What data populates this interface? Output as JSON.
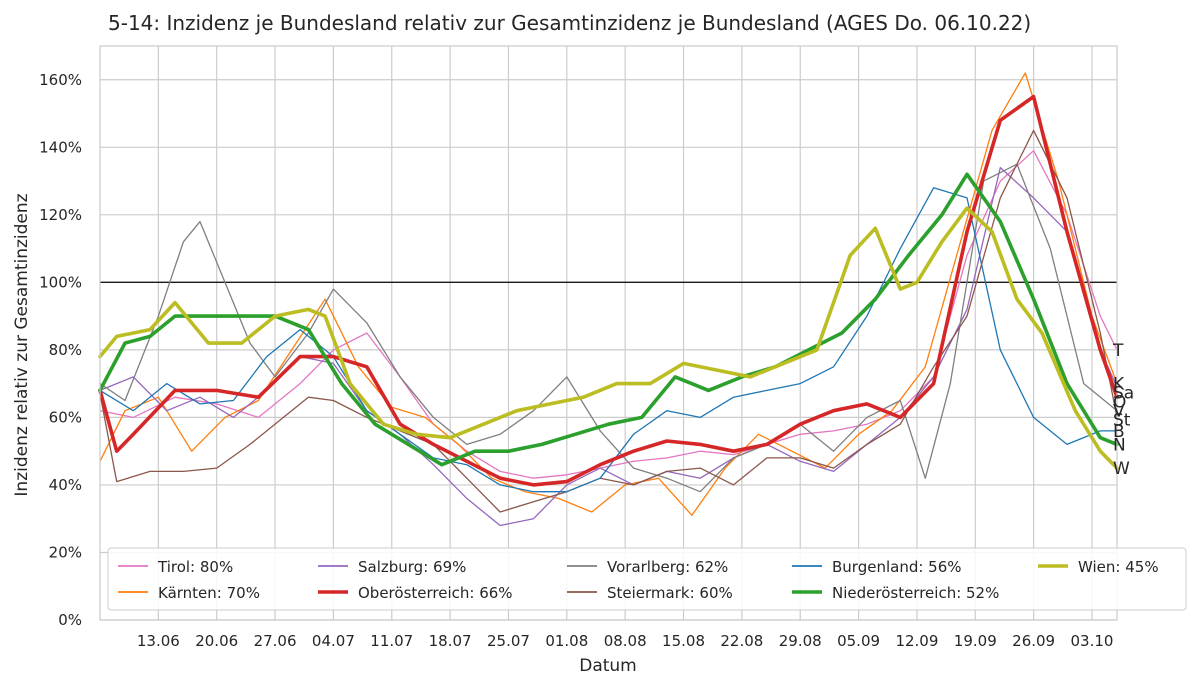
{
  "chart_data": {
    "type": "line",
    "title": "5-14: Inzidenz je Bundesland relativ zur Gesamtinzidenz je Bundesland (AGES Do. 06.10.22)",
    "xlabel": "Datum",
    "ylabel": "Inzidenz relativ zur Gesamtinzidenz",
    "y_unit": "%",
    "ylim": [
      0,
      170
    ],
    "yticks": [
      0,
      20,
      40,
      60,
      80,
      100,
      120,
      140,
      160
    ],
    "ytick_labels": [
      "0%",
      "20%",
      "40%",
      "60%",
      "80%",
      "100%",
      "120%",
      "140%",
      "160%"
    ],
    "x_range": [
      "2022-06-06",
      "2022-10-06"
    ],
    "xticks": [
      "2022-06-13",
      "2022-06-20",
      "2022-06-27",
      "2022-07-04",
      "2022-07-11",
      "2022-07-18",
      "2022-07-25",
      "2022-08-01",
      "2022-08-08",
      "2022-08-15",
      "2022-08-22",
      "2022-08-29",
      "2022-09-05",
      "2022-09-12",
      "2022-09-19",
      "2022-09-26",
      "2022-10-03"
    ],
    "xtick_labels": [
      "13.06",
      "20.06",
      "27.06",
      "04.07",
      "11.07",
      "18.07",
      "25.07",
      "01.08",
      "08.08",
      "15.08",
      "22.08",
      "29.08",
      "05.09",
      "12.09",
      "19.09",
      "26.09",
      "03.10"
    ],
    "reference_line": 100,
    "grid": true,
    "legend_position": "bottom",
    "series": [
      {
        "name": "Tirol",
        "legend": "Tirol: 80%",
        "end_label": "T",
        "color": "#e377c2",
        "bold": false,
        "x": [
          "2022-06-06",
          "2022-06-10",
          "2022-06-15",
          "2022-06-20",
          "2022-06-25",
          "2022-06-30",
          "2022-07-04",
          "2022-07-08",
          "2022-07-12",
          "2022-07-16",
          "2022-07-20",
          "2022-07-24",
          "2022-07-28",
          "2022-08-01",
          "2022-08-05",
          "2022-08-09",
          "2022-08-13",
          "2022-08-17",
          "2022-08-21",
          "2022-08-25",
          "2022-08-29",
          "2022-09-02",
          "2022-09-06",
          "2022-09-10",
          "2022-09-14",
          "2022-09-18",
          "2022-09-22",
          "2022-09-26",
          "2022-09-30",
          "2022-10-04",
          "2022-10-06"
        ],
        "y": [
          62,
          60,
          66,
          64,
          60,
          70,
          80,
          85,
          72,
          58,
          50,
          44,
          42,
          43,
          45,
          47,
          48,
          50,
          49,
          52,
          55,
          56,
          58,
          62,
          72,
          108,
          130,
          139,
          120,
          90,
          80
        ]
      },
      {
        "name": "Kärnten",
        "legend": "Kärnten: 70%",
        "end_label": "K",
        "color": "#ff7f0e",
        "bold": false,
        "x": [
          "2022-06-06",
          "2022-06-09",
          "2022-06-13",
          "2022-06-17",
          "2022-06-21",
          "2022-06-25",
          "2022-06-29",
          "2022-07-03",
          "2022-07-07",
          "2022-07-11",
          "2022-07-15",
          "2022-07-19",
          "2022-07-23",
          "2022-07-27",
          "2022-07-31",
          "2022-08-04",
          "2022-08-08",
          "2022-08-12",
          "2022-08-16",
          "2022-08-20",
          "2022-08-24",
          "2022-08-28",
          "2022-09-01",
          "2022-09-05",
          "2022-09-09",
          "2022-09-13",
          "2022-09-17",
          "2022-09-21",
          "2022-09-25",
          "2022-09-29",
          "2022-10-03",
          "2022-10-06"
        ],
        "y": [
          47,
          62,
          66,
          50,
          60,
          65,
          80,
          95,
          75,
          63,
          60,
          52,
          42,
          38,
          36,
          32,
          40,
          42,
          31,
          45,
          55,
          50,
          45,
          55,
          62,
          75,
          110,
          145,
          162,
          130,
          90,
          70
        ]
      },
      {
        "name": "Salzburg",
        "legend": "Salzburg: 69%",
        "end_label": "Sa",
        "color": "#9467bd",
        "bold": false,
        "x": [
          "2022-06-06",
          "2022-06-10",
          "2022-06-14",
          "2022-06-18",
          "2022-06-22",
          "2022-06-26",
          "2022-06-30",
          "2022-07-04",
          "2022-07-08",
          "2022-07-12",
          "2022-07-16",
          "2022-07-20",
          "2022-07-24",
          "2022-07-28",
          "2022-08-01",
          "2022-08-05",
          "2022-08-09",
          "2022-08-13",
          "2022-08-17",
          "2022-08-21",
          "2022-08-25",
          "2022-08-29",
          "2022-09-02",
          "2022-09-06",
          "2022-09-10",
          "2022-09-14",
          "2022-09-18",
          "2022-09-22",
          "2022-09-26",
          "2022-09-30",
          "2022-10-04",
          "2022-10-06"
        ],
        "y": [
          68,
          72,
          62,
          66,
          60,
          68,
          78,
          76,
          62,
          55,
          46,
          36,
          28,
          30,
          40,
          45,
          40,
          44,
          42,
          48,
          52,
          47,
          44,
          52,
          60,
          72,
          92,
          134,
          125,
          115,
          80,
          69
        ]
      },
      {
        "name": "Oberösterreich",
        "legend": "Oberösterreich: 66%",
        "end_label": "O",
        "color": "#d62728",
        "bold": true,
        "x": [
          "2022-06-06",
          "2022-06-08",
          "2022-06-10",
          "2022-06-15",
          "2022-06-20",
          "2022-06-25",
          "2022-06-30",
          "2022-07-04",
          "2022-07-08",
          "2022-07-12",
          "2022-07-16",
          "2022-07-20",
          "2022-07-24",
          "2022-07-28",
          "2022-08-01",
          "2022-08-05",
          "2022-08-09",
          "2022-08-13",
          "2022-08-17",
          "2022-08-21",
          "2022-08-25",
          "2022-08-29",
          "2022-09-02",
          "2022-09-06",
          "2022-09-10",
          "2022-09-14",
          "2022-09-18",
          "2022-09-22",
          "2022-09-26",
          "2022-09-30",
          "2022-10-04",
          "2022-10-06"
        ],
        "y": [
          68,
          50,
          55,
          68,
          68,
          66,
          78,
          78,
          75,
          58,
          52,
          47,
          42,
          40,
          41,
          46,
          50,
          53,
          52,
          50,
          52,
          58,
          62,
          64,
          60,
          70,
          115,
          148,
          155,
          115,
          80,
          66
        ]
      },
      {
        "name": "Vorarlberg",
        "legend": "Vorarlberg: 62%",
        "end_label": "V",
        "color": "#7f7f7f",
        "bold": false,
        "x": [
          "2022-06-06",
          "2022-06-09",
          "2022-06-13",
          "2022-06-16",
          "2022-06-18",
          "2022-06-21",
          "2022-06-24",
          "2022-06-27",
          "2022-07-01",
          "2022-07-04",
          "2022-07-08",
          "2022-07-12",
          "2022-07-16",
          "2022-07-20",
          "2022-07-24",
          "2022-07-28",
          "2022-08-01",
          "2022-08-05",
          "2022-08-09",
          "2022-08-13",
          "2022-08-17",
          "2022-08-21",
          "2022-08-25",
          "2022-08-29",
          "2022-09-02",
          "2022-09-06",
          "2022-09-10",
          "2022-09-13",
          "2022-09-16",
          "2022-09-20",
          "2022-09-24",
          "2022-09-28",
          "2022-10-02",
          "2022-10-06"
        ],
        "y": [
          70,
          65,
          90,
          112,
          118,
          100,
          82,
          72,
          85,
          98,
          88,
          72,
          60,
          52,
          55,
          62,
          72,
          56,
          45,
          42,
          38,
          48,
          52,
          58,
          50,
          60,
          65,
          42,
          70,
          130,
          135,
          110,
          70,
          62
        ]
      },
      {
        "name": "Steiermark",
        "legend": "Steiermark: 60%",
        "end_label": "St",
        "color": "#8c564b",
        "bold": false,
        "x": [
          "2022-06-06",
          "2022-06-08",
          "2022-06-12",
          "2022-06-16",
          "2022-06-20",
          "2022-06-24",
          "2022-06-28",
          "2022-07-01",
          "2022-07-04",
          "2022-07-08",
          "2022-07-12",
          "2022-07-16",
          "2022-07-20",
          "2022-07-24",
          "2022-07-28",
          "2022-08-01",
          "2022-08-05",
          "2022-08-09",
          "2022-08-13",
          "2022-08-17",
          "2022-08-21",
          "2022-08-25",
          "2022-08-29",
          "2022-09-02",
          "2022-09-06",
          "2022-09-10",
          "2022-09-14",
          "2022-09-18",
          "2022-09-22",
          "2022-09-26",
          "2022-09-30",
          "2022-10-04",
          "2022-10-06"
        ],
        "y": [
          67,
          41,
          44,
          44,
          45,
          52,
          60,
          66,
          65,
          60,
          56,
          52,
          42,
          32,
          35,
          38,
          42,
          40,
          44,
          45,
          40,
          48,
          48,
          45,
          52,
          58,
          75,
          90,
          125,
          145,
          125,
          85,
          60
        ]
      },
      {
        "name": "Burgenland",
        "legend": "Burgenland: 56%",
        "end_label": "B",
        "color": "#1f77b4",
        "bold": false,
        "x": [
          "2022-06-06",
          "2022-06-10",
          "2022-06-14",
          "2022-06-18",
          "2022-06-22",
          "2022-06-26",
          "2022-06-30",
          "2022-07-04",
          "2022-07-08",
          "2022-07-12",
          "2022-07-16",
          "2022-07-20",
          "2022-07-24",
          "2022-07-28",
          "2022-08-01",
          "2022-08-05",
          "2022-08-09",
          "2022-08-13",
          "2022-08-17",
          "2022-08-21",
          "2022-08-25",
          "2022-08-29",
          "2022-09-02",
          "2022-09-06",
          "2022-09-10",
          "2022-09-14",
          "2022-09-18",
          "2022-09-22",
          "2022-09-26",
          "2022-09-30",
          "2022-10-04",
          "2022-10-06"
        ],
        "y": [
          68,
          62,
          70,
          64,
          65,
          78,
          86,
          78,
          62,
          55,
          48,
          46,
          40,
          38,
          38,
          42,
          55,
          62,
          60,
          66,
          68,
          70,
          75,
          90,
          110,
          128,
          125,
          80,
          60,
          52,
          56,
          56
        ]
      },
      {
        "name": "Niederösterreich",
        "legend": "Niederösterreich: 52%",
        "end_label": "N",
        "color": "#2ca02c",
        "bold": true,
        "x": [
          "2022-06-06",
          "2022-06-09",
          "2022-06-12",
          "2022-06-15",
          "2022-06-19",
          "2022-06-23",
          "2022-06-27",
          "2022-07-01",
          "2022-07-05",
          "2022-07-09",
          "2022-07-13",
          "2022-07-17",
          "2022-07-21",
          "2022-07-25",
          "2022-07-29",
          "2022-08-02",
          "2022-08-06",
          "2022-08-10",
          "2022-08-14",
          "2022-08-18",
          "2022-08-22",
          "2022-08-26",
          "2022-08-30",
          "2022-09-03",
          "2022-09-07",
          "2022-09-11",
          "2022-09-15",
          "2022-09-18",
          "2022-09-22",
          "2022-09-26",
          "2022-09-30",
          "2022-10-04",
          "2022-10-06"
        ],
        "y": [
          68,
          82,
          84,
          90,
          90,
          90,
          90,
          86,
          70,
          58,
          52,
          46,
          50,
          50,
          52,
          55,
          58,
          60,
          72,
          68,
          72,
          75,
          80,
          85,
          95,
          108,
          120,
          132,
          118,
          95,
          70,
          54,
          52
        ]
      },
      {
        "name": "Wien",
        "legend": "Wien: 45%",
        "end_label": "W",
        "color": "#bcbd22",
        "bold": true,
        "x": [
          "2022-06-06",
          "2022-06-08",
          "2022-06-12",
          "2022-06-15",
          "2022-06-19",
          "2022-06-23",
          "2022-06-27",
          "2022-07-01",
          "2022-07-03",
          "2022-07-06",
          "2022-07-10",
          "2022-07-14",
          "2022-07-18",
          "2022-07-22",
          "2022-07-26",
          "2022-07-30",
          "2022-08-03",
          "2022-08-07",
          "2022-08-11",
          "2022-08-15",
          "2022-08-19",
          "2022-08-23",
          "2022-08-27",
          "2022-08-31",
          "2022-09-04",
          "2022-09-07",
          "2022-09-10",
          "2022-09-12",
          "2022-09-15",
          "2022-09-18",
          "2022-09-21",
          "2022-09-24",
          "2022-09-27",
          "2022-10-01",
          "2022-10-04",
          "2022-10-06"
        ],
        "y": [
          78,
          84,
          86,
          94,
          82,
          82,
          90,
          92,
          90,
          70,
          58,
          55,
          54,
          58,
          62,
          64,
          66,
          70,
          70,
          76,
          74,
          72,
          76,
          80,
          108,
          116,
          98,
          100,
          112,
          122,
          115,
          95,
          85,
          62,
          50,
          45
        ]
      }
    ]
  }
}
